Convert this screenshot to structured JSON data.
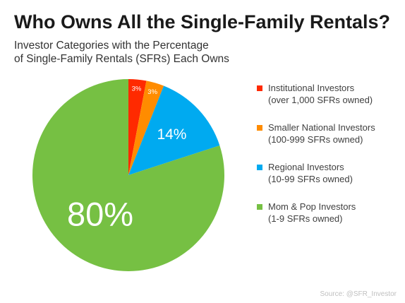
{
  "title": "Who Owns All the Single-Family Rentals?",
  "subtitle": {
    "line1": "Investor Categories with the Percentage",
    "line2": "of Single-Family Rentals (SFRs) Each Owns"
  },
  "source": "Source: @SFR_Investor",
  "chart_data": {
    "type": "pie",
    "title": "Who Owns All the Single-Family Rentals?",
    "subtitle": "Investor Categories with the Percentage of Single-Family Rentals (SFRs) Each Owns",
    "legend_position": "right",
    "slices": [
      {
        "name": "Institutional Investors",
        "detail": "(over 1,000 SFRs owned)",
        "value": 3,
        "label": "3%",
        "color": "#ff2a00"
      },
      {
        "name": "Smaller National Investors",
        "detail": "(100-999 SFRs owned)",
        "value": 3,
        "label": "3%",
        "color": "#ff8c00"
      },
      {
        "name": "Regional Investors",
        "detail": "(10-99 SFRs owned)",
        "value": 14,
        "label": "14%",
        "color": "#00aaf0"
      },
      {
        "name": "Mom & Pop Investors",
        "detail": "(1-9 SFRs owned)",
        "value": 80,
        "label": "80%",
        "color": "#76c043"
      }
    ]
  }
}
